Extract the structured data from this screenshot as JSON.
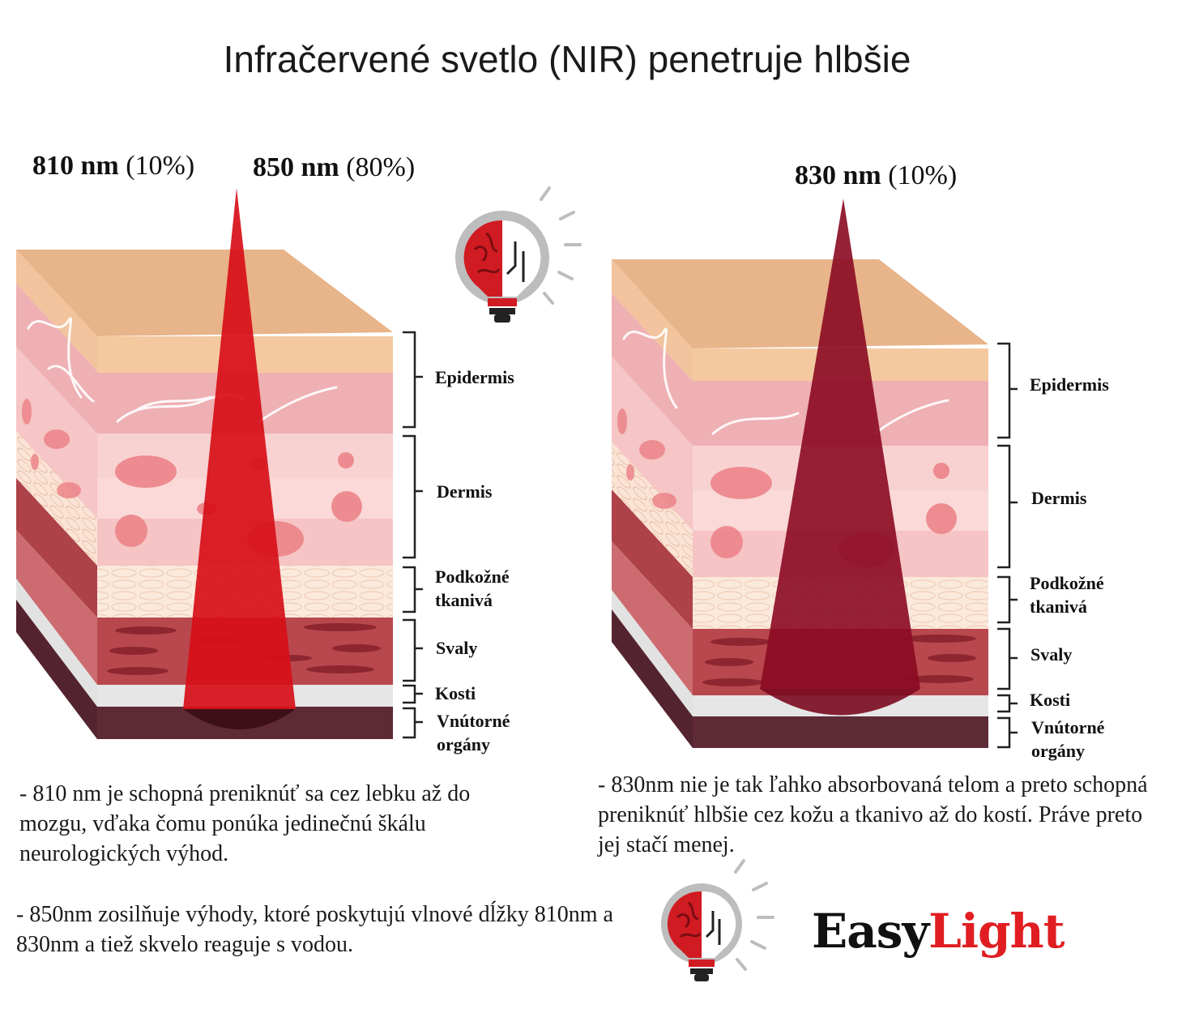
{
  "title": "Infračervené svetlo (NIR) penetruje hlbšie",
  "wavelengths": {
    "w810": {
      "nm": "810 nm",
      "pct": "(10%)"
    },
    "w850": {
      "nm": "850 nm",
      "pct": "(80%)"
    },
    "w830": {
      "nm": "830 nm",
      "pct": "(10%)"
    }
  },
  "layers_left": {
    "epidermis": "Epidermis",
    "dermis": "Dermis",
    "podkozne_1": "Podkožné",
    "podkozne_2": "tkanivá",
    "svaly": "Svaly",
    "kosti": "Kosti",
    "organy_1": "Vnútorné",
    "organy_2": "orgány"
  },
  "layers_right": {
    "epidermis": "Epidermis",
    "dermis": "Dermis",
    "podkozne_1": "Podkožné",
    "podkozne_2": "tkanivá",
    "svaly": "Svaly",
    "kosti": "Kosti",
    "organy_1": "Vnútorné",
    "organy_2": "orgány"
  },
  "descriptions": {
    "d810": "- 810 nm je schopná preniknúť sa cez lebku až do mozgu, vďaka čomu ponúka jedinečnú škálu neurologických výhod.",
    "d850": "- 850nm zosilňuje výhody, ktoré poskytujú vlnové dĺžky 810nm a 830nm a tiež skvelo reaguje s vodou.",
    "d830": "- 830nm nie je tak ľahko absorbovaná telom a preto schopná preniknúť hlbšie cez kožu a tkanivo až do kostí. Práve preto jej stačí menej."
  },
  "logo": {
    "easy": "Easy",
    "light": "Light"
  },
  "colors": {
    "beam_left": "#d70f18",
    "beam_right": "#8b0a22",
    "skin_top": "#e8b48a",
    "epidermis": "#f4c9a0",
    "dermis": "#f4b7b9",
    "subcutis": "#fbe9dc",
    "muscle": "#b8484e",
    "bone": "#e6e6e6",
    "organs": "#5e2a36",
    "brand_red": "#e01e22"
  }
}
